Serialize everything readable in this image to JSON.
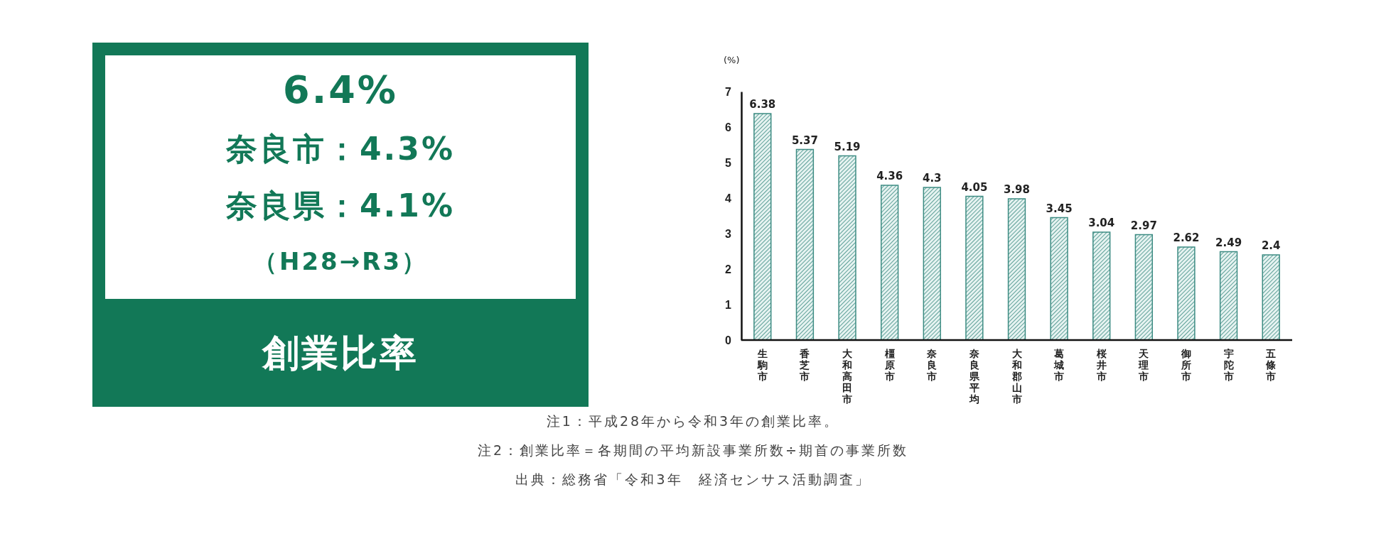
{
  "chart_data": [
    {
      "type": "other",
      "title": "創業比率",
      "annotations": [
        "6.4%",
        "奈良市：4.3%",
        "奈良県：4.1%",
        "（H28→R3）"
      ],
      "color": "#127857"
    },
    {
      "type": "bar",
      "ylabel": "(%)",
      "categories": [
        "生駒市",
        "香芝市",
        "大和高田市",
        "橿原市",
        "奈良市",
        "奈良県平均",
        "大和郡山市",
        "葛城市",
        "桜井市",
        "天理市",
        "御所市",
        "宇陀市",
        "五條市"
      ],
      "values": [
        6.38,
        5.37,
        5.19,
        4.36,
        4.3,
        4.05,
        3.98,
        3.45,
        3.04,
        2.97,
        2.62,
        2.49,
        2.4
      ],
      "color": "#3d8c83",
      "data_labels": true,
      "ylim": [
        0,
        7
      ],
      "yticks": [
        0,
        1,
        2,
        3,
        4,
        5,
        6,
        7
      ],
      "annotations": [
        "注1：平成28年から令和3年の創業比率。",
        "注2：創業比率＝各期間の平均新設事業所数÷期首の事業所数",
        "出典：総務省「令和3年　経済センサス活動調査」"
      ]
    }
  ]
}
